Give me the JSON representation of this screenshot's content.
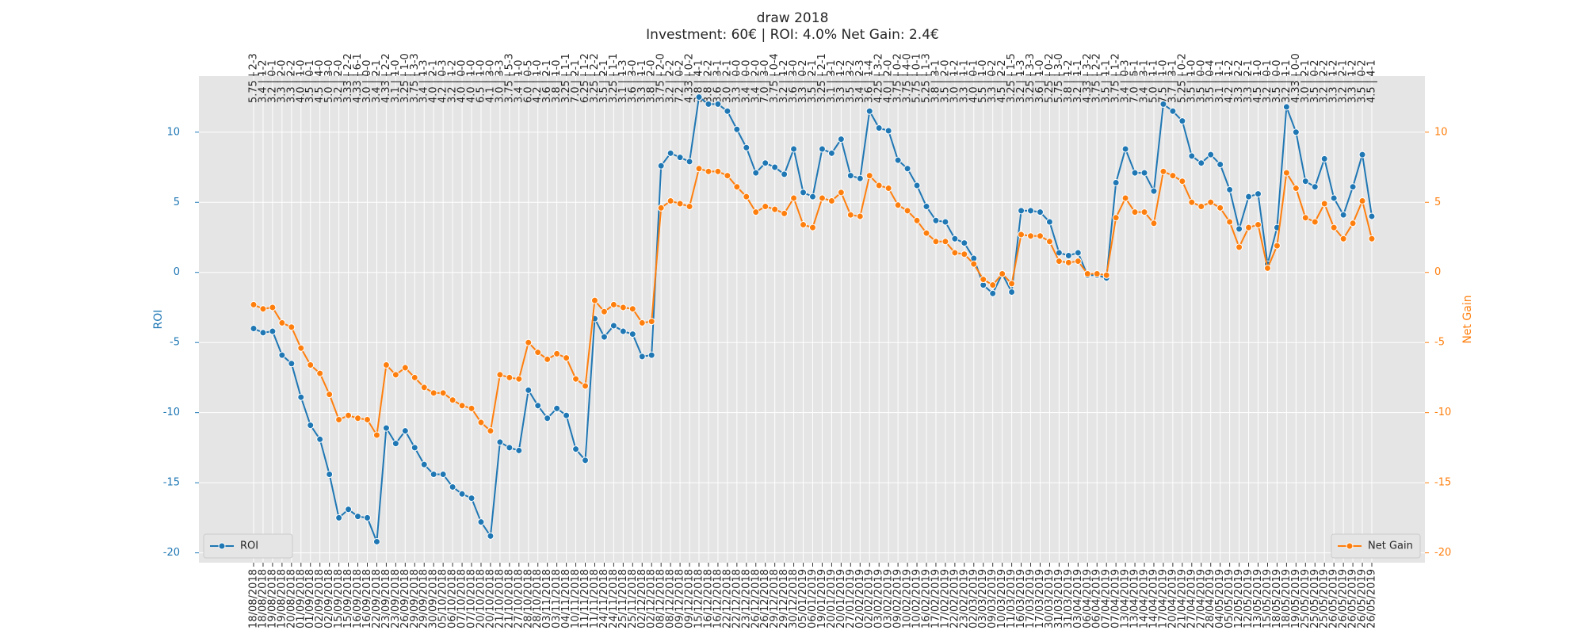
{
  "chart_data": {
    "type": "line",
    "title": "draw 2018",
    "subtitle": "Investment: 60€ | ROI: 4.0% Net Gain: 2.4€",
    "ylabel": "ROI",
    "y2label": "Net Gain",
    "grid": true,
    "categories": [
      "18/08/2018",
      "18/08/2018",
      "19/08/2018",
      "19/08/2018",
      "20/08/2018",
      "01/09/2018",
      "01/09/2018",
      "02/09/2018",
      "02/09/2018",
      "15/09/2018",
      "15/09/2018",
      "16/09/2018",
      "16/09/2018",
      "22/09/2018",
      "23/09/2018",
      "23/09/2018",
      "26/09/2018",
      "29/09/2018",
      "29/09/2018",
      "30/09/2018",
      "05/10/2018",
      "06/10/2018",
      "07/10/2018",
      "07/10/2018",
      "20/10/2018",
      "20/10/2018",
      "21/10/2018",
      "21/10/2018",
      "27/10/2018",
      "28/10/2018",
      "28/10/2018",
      "03/11/2018",
      "03/11/2018",
      "04/11/2018",
      "10/11/2018",
      "11/11/2018",
      "11/11/2018",
      "24/11/2018",
      "24/11/2018",
      "25/11/2018",
      "25/11/2018",
      "02/12/2018",
      "02/12/2018",
      "08/12/2018",
      "08/12/2018",
      "09/12/2018",
      "09/12/2018",
      "15/12/2018",
      "16/12/2018",
      "16/12/2018",
      "22/12/2018",
      "22/12/2018",
      "23/12/2018",
      "26/12/2018",
      "26/12/2018",
      "29/12/2018",
      "29/12/2018",
      "30/12/2018",
      "05/01/2019",
      "06/01/2019",
      "19/01/2019",
      "20/01/2019",
      "20/01/2019",
      "27/01/2019",
      "02/02/2019",
      "02/02/2019",
      "03/02/2019",
      "03/02/2019",
      "09/02/2019",
      "10/02/2019",
      "10/02/2019",
      "16/02/2019",
      "17/02/2019",
      "17/02/2019",
      "22/02/2019",
      "23/02/2019",
      "02/03/2019",
      "03/03/2019",
      "09/03/2019",
      "10/03/2019",
      "11/03/2019",
      "16/03/2019",
      "17/03/2019",
      "17/03/2019",
      "30/03/2019",
      "31/03/2019",
      "31/03/2019",
      "03/04/2019",
      "06/04/2019",
      "06/04/2019",
      "07/04/2019",
      "07/04/2019",
      "13/04/2019",
      "13/04/2019",
      "14/04/2019",
      "14/04/2019",
      "17/04/2019",
      "20/04/2019",
      "21/04/2019",
      "27/04/2019",
      "27/04/2019",
      "28/04/2019",
      "04/05/2019",
      "05/05/2019",
      "12/05/2019",
      "12/05/2019",
      "13/05/2019",
      "15/05/2019",
      "18/05/2019",
      "18/05/2019",
      "19/05/2019",
      "25/05/2019",
      "25/05/2019",
      "25/05/2019",
      "26/05/2019",
      "26/05/2019",
      "26/05/2019",
      "26/05/2019",
      "26/05/2019"
    ],
    "x2_categories": [
      "5.75 | 2-3",
      "3.4 | 1-2",
      "3.2 | 0-1",
      "3.3 | 2-0",
      "3.3 | 2-2",
      "4.0 | 1-0",
      "3.5 | 0-1",
      "4.5 | 4-0",
      "5.0 | 3-0",
      "3.2 | 2-0",
      "3.33 | 2-2",
      "4.33 | 6-1",
      "3.0 | 0-0",
      "3.4 | 2-1",
      "4.33 | 2-2",
      "3.1 | 1-0",
      "3.25 | 1-0",
      "3.75 | 3-3",
      "3.4 | 1-3",
      "4.0 | 2-1",
      "4.2 | 0-3",
      "3.2 | 1-2",
      "4.0 | 0-0",
      "4.0 | 1-0",
      "6.5 | 1-0",
      "4.1 | 3-0",
      "3.0 | 3-3",
      "3.75 | 5-3",
      "3.4 | 1-0",
      "6.0 | 0-5",
      "4.2 | 1-0",
      "3.6 | 2-1",
      "3.8 | 1-0",
      "3.25 | 1-1",
      "7.0 | 2-1",
      "6.25 | 1-2",
      "3.25 | 2-2",
      "3.5 | 2-1",
      "3.25 | 1-1",
      "3.1 | 1-3",
      "3.6 | 3-0",
      "3.3 | 1-1",
      "3.8 | 2-0",
      "3.75 | 2-0",
      "3.2 | 2-2",
      "7.2 | 0-2",
      "4.33 | 0-2",
      "3.8 | 4-1",
      "3.8 | 2-2",
      "3.6 | 3-1",
      "3.0 | 2-1",
      "3.3 | 0-0",
      "3.4 | 0-0",
      "3.4 | 2-0",
      "7.0 | 3-0",
      "3.75 | 0-4",
      "3.2 | 1-2",
      "3.6 | 3-0",
      "3.3 | 0-2",
      "3.5 | 2-1",
      "3.25 | 2-1",
      "3.1 | 3-1",
      "3.3 | 1-2",
      "3.5 | 3-2",
      "3.4 | 2-3",
      "3.6 | 1-4",
      "4.25 | 3-2",
      "4.0 | 2-0",
      "3.75 | 0-2",
      "3.75 | 4-0",
      "5.75 | 0-1",
      "5.25 | 1-3",
      "3.8 | 3-1",
      "3.5 | 2-0",
      "3.0 | 1-2",
      "3.3 | 1-1",
      "4.0 | 0-1",
      "5.5 | 1-0",
      "3.3 | 0-2",
      "4.5 | 2-2",
      "3.25 | 1-5",
      "3.2 | 1-3",
      "3.25 | 3-3",
      "3.6 | 1-0",
      "5.25 | 0-2",
      "5.75 | 3-0",
      "3.8 | 1-2",
      "3.2 | 1-1",
      "4.33 | 3-2",
      "3.75 | 2-2",
      "3.5 | 1-1",
      "3.75 | 1-2",
      "3.4 | 0-3",
      "7.0 | 5-1",
      "3.4 | 3-1",
      "5.0 | 1-1",
      "7.5 | 1-0",
      "3.7 | 3-1",
      "5.25 | 0-2",
      "3.5 | 1-0",
      "3.5 | 0-0",
      "3.5 | 0-4",
      "3.1 | 1-1",
      "4.2 | 1-2",
      "3.3 | 2-2",
      "3.3 | 2-1",
      "4.5 | 1-0",
      "3.2 | 0-1",
      "3.5 | 0-0",
      "3.2 | 1-1",
      "4.33 | 0-0",
      "3.0 | 2-1",
      "3.5 | 0-2",
      "3.2 | 2-2",
      "3.3 | 1-2",
      "3.2 | 2-1",
      "3.3 | 1-2",
      "3.5 | 0-2",
      "4.5 | 4-1"
    ],
    "ylim": [
      -20.7,
      14.0
    ],
    "yticks": [
      -20,
      -15,
      -10,
      -5,
      0,
      5,
      10
    ],
    "y2lim": [
      -20.7,
      14.0
    ],
    "y2ticks": [
      -20,
      -15,
      -10,
      -5,
      0,
      5,
      10
    ],
    "series": [
      {
        "name": "ROI",
        "color": "#1f77b4",
        "legend_loc": "lower left",
        "values": [
          -4.0,
          -4.3,
          -4.2,
          -5.9,
          -6.5,
          -8.9,
          -10.9,
          -11.9,
          -14.4,
          -17.5,
          -16.9,
          -17.4,
          -17.5,
          -19.2,
          -11.1,
          -12.2,
          -11.3,
          -12.5,
          -13.7,
          -14.4,
          -14.4,
          -15.3,
          -15.8,
          -16.1,
          -17.8,
          -18.8,
          -12.1,
          -12.5,
          -12.7,
          -8.4,
          -9.5,
          -10.4,
          -9.7,
          -10.2,
          -12.6,
          -13.4,
          -3.3,
          -4.6,
          -3.8,
          -4.2,
          -4.4,
          -6.0,
          -5.9,
          7.6,
          8.5,
          8.2,
          7.9,
          12.5,
          12.0,
          12.0,
          11.5,
          10.2,
          8.9,
          7.1,
          7.8,
          7.5,
          7.0,
          8.8,
          5.7,
          5.4,
          8.8,
          8.5,
          9.5,
          6.9,
          6.7,
          11.5,
          10.3,
          10.1,
          8.0,
          7.4,
          6.2,
          4.7,
          3.7,
          3.6,
          2.4,
          2.1,
          1.0,
          -0.9,
          -1.5,
          -0.1,
          -1.4,
          4.4,
          4.4,
          4.3,
          3.6,
          1.4,
          1.2,
          1.4,
          -0.2,
          -0.2,
          -0.4,
          6.4,
          8.8,
          7.1,
          7.1,
          5.8,
          12.0,
          11.5,
          10.8,
          8.3,
          7.8,
          8.4,
          7.7,
          5.9,
          3.1,
          5.4,
          5.6,
          0.6,
          3.2,
          11.8,
          10.0,
          6.5,
          6.1,
          8.1,
          5.3,
          4.1,
          6.1,
          8.4,
          4.0
        ]
      },
      {
        "name": "Net Gain",
        "color": "#ff7f0e",
        "axis": "y2",
        "legend_loc": "lower right",
        "values": [
          -2.3,
          -2.6,
          -2.5,
          -3.6,
          -3.9,
          -5.4,
          -6.6,
          -7.2,
          -8.7,
          -10.5,
          -10.2,
          -10.4,
          -10.5,
          -11.6,
          -6.6,
          -7.3,
          -6.8,
          -7.5,
          -8.2,
          -8.6,
          -8.6,
          -9.1,
          -9.5,
          -9.7,
          -10.7,
          -11.3,
          -7.3,
          -7.5,
          -7.6,
          -5.0,
          -5.7,
          -6.2,
          -5.8,
          -6.1,
          -7.6,
          -8.1,
          -2.0,
          -2.8,
          -2.3,
          -2.5,
          -2.6,
          -3.6,
          -3.5,
          4.6,
          5.1,
          4.9,
          4.7,
          7.4,
          7.2,
          7.2,
          6.9,
          6.1,
          5.4,
          4.3,
          4.7,
          4.5,
          4.2,
          5.3,
          3.4,
          3.2,
          5.3,
          5.1,
          5.7,
          4.1,
          4.0,
          6.9,
          6.2,
          6.0,
          4.8,
          4.4,
          3.7,
          2.8,
          2.2,
          2.2,
          1.4,
          1.3,
          0.6,
          -0.5,
          -0.9,
          -0.1,
          -0.8,
          2.7,
          2.6,
          2.6,
          2.2,
          0.8,
          0.7,
          0.8,
          -0.1,
          -0.1,
          -0.2,
          3.9,
          5.3,
          4.3,
          4.3,
          3.5,
          7.2,
          6.9,
          6.5,
          5.0,
          4.7,
          5.0,
          4.6,
          3.6,
          1.8,
          3.2,
          3.4,
          0.3,
          1.9,
          7.1,
          6.0,
          3.9,
          3.6,
          4.9,
          3.2,
          2.4,
          3.5,
          5.1,
          2.4
        ]
      }
    ]
  }
}
